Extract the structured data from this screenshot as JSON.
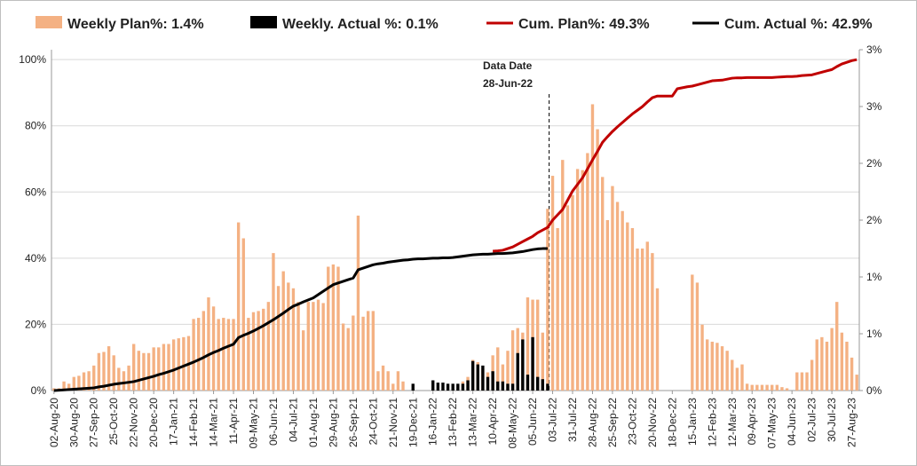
{
  "chart_data": {
    "type": "combo",
    "categories": [
      "02-Aug-20",
      null,
      null,
      null,
      "30-Aug-20",
      null,
      null,
      null,
      "27-Sep-20",
      null,
      null,
      null,
      "25-Oct-20",
      null,
      null,
      null,
      "22-Nov-20",
      null,
      null,
      null,
      "20-Dec-20",
      null,
      null,
      null,
      "17-Jan-21",
      null,
      null,
      null,
      "14-Feb-21",
      null,
      null,
      null,
      "14-Mar-21",
      null,
      null,
      null,
      "11-Apr-21",
      null,
      null,
      null,
      "09-May-21",
      null,
      null,
      null,
      "06-Jun-21",
      null,
      null,
      null,
      "04-Jul-21",
      null,
      null,
      null,
      "01-Aug-21",
      null,
      null,
      null,
      "29-Aug-21",
      null,
      null,
      null,
      "26-Sep-21",
      null,
      null,
      null,
      "24-Oct-21",
      null,
      null,
      null,
      "21-Nov-21",
      null,
      null,
      null,
      "19-Dec-21",
      null,
      null,
      null,
      "16-Jan-22",
      null,
      null,
      null,
      "13-Feb-22",
      null,
      null,
      null,
      "13-Mar-22",
      null,
      null,
      null,
      "10-Apr-22",
      null,
      null,
      null,
      "08-May-22",
      null,
      null,
      null,
      "05-Jun-22",
      null,
      null,
      null,
      "03-Jul-22",
      null,
      null,
      null,
      "31-Jul-22",
      null,
      null,
      null,
      "28-Aug-22",
      null,
      null,
      null,
      "25-Sep-22",
      null,
      null,
      null,
      "23-Oct-22",
      null,
      null,
      null,
      "20-Nov-22",
      null,
      null,
      null,
      "18-Dec-22",
      null,
      null,
      null,
      "15-Jan-23",
      null,
      null,
      null,
      "12-Feb-23",
      null,
      null,
      null,
      "12-Mar-23",
      null,
      null,
      null,
      "09-Apr-23",
      null,
      null,
      null,
      "07-May-23",
      null,
      null,
      null,
      "04-Jun-23",
      null,
      null,
      null,
      "02-Jul-23",
      null,
      null,
      null,
      "30-Jul-23",
      null,
      null,
      null,
      "27-Aug-23",
      null
    ],
    "series": [
      {
        "name": "Weekly Plan%:  1.4%",
        "type": "bar",
        "axis": "y2",
        "color": "#f4b183",
        "values": [
          0.02,
          0.02,
          0.08,
          0.06,
          0.12,
          0.13,
          0.16,
          0.17,
          0.22,
          0.33,
          0.34,
          0.39,
          0.31,
          0.2,
          0.17,
          0.22,
          0.41,
          0.35,
          0.33,
          0.33,
          0.38,
          0.38,
          0.41,
          0.41,
          0.45,
          0.46,
          0.47,
          0.48,
          0.63,
          0.64,
          0.7,
          0.82,
          0.74,
          0.63,
          0.64,
          0.63,
          0.63,
          1.48,
          1.34,
          0.64,
          0.69,
          0.7,
          0.72,
          0.78,
          1.21,
          0.92,
          1.05,
          0.95,
          0.9,
          0.78,
          0.53,
          0.78,
          0.78,
          0.8,
          0.77,
          1.09,
          1.11,
          1.09,
          0.59,
          0.55,
          0.66,
          1.54,
          0.65,
          0.7,
          0.7,
          0.17,
          0.22,
          0.17,
          0.06,
          0.17,
          0.08,
          null,
          null,
          null,
          null,
          null,
          null,
          null,
          null,
          null,
          null,
          null,
          0.08,
          0.12,
          0.27,
          0.25,
          0.2,
          0.16,
          0.31,
          0.38,
          0.23,
          0.35,
          0.53,
          0.55,
          0.51,
          0.82,
          0.8,
          0.8,
          0.51,
          1.6,
          1.89,
          1.43,
          2.03,
          1.63,
          1.72,
          1.95,
          1.94,
          2.09,
          2.52,
          2.3,
          1.88,
          1.5,
          1.8,
          1.66,
          1.58,
          1.48,
          1.43,
          1.25,
          1.25,
          1.31,
          1.21,
          0.9,
          null,
          null,
          null,
          null,
          null,
          null,
          1.02,
          0.95,
          0.58,
          0.45,
          0.43,
          0.42,
          0.39,
          0.35,
          0.27,
          0.2,
          0.23,
          0.06,
          0.05,
          0.05,
          0.05,
          0.05,
          0.05,
          0.05,
          0.03,
          0.02,
          null,
          0.16,
          0.16,
          0.16,
          0.27,
          0.45,
          0.47,
          0.43,
          0.55,
          0.78,
          0.51,
          0.43,
          0.29,
          0.14
        ]
      },
      {
        "name": "Weekly. Actual %:  0.1%",
        "type": "bar",
        "axis": "y2",
        "color": "#000000",
        "values": [
          null,
          null,
          null,
          null,
          null,
          null,
          null,
          null,
          null,
          null,
          null,
          null,
          null,
          null,
          null,
          null,
          null,
          null,
          null,
          null,
          null,
          null,
          null,
          null,
          null,
          null,
          null,
          null,
          null,
          null,
          null,
          null,
          null,
          null,
          null,
          null,
          null,
          null,
          null,
          null,
          null,
          null,
          null,
          null,
          null,
          null,
          null,
          null,
          null,
          null,
          null,
          null,
          null,
          null,
          null,
          null,
          null,
          null,
          null,
          null,
          null,
          null,
          null,
          null,
          null,
          null,
          null,
          null,
          null,
          null,
          null,
          null,
          0.06,
          null,
          null,
          null,
          0.09,
          0.07,
          0.07,
          0.06,
          0.06,
          0.06,
          0.06,
          0.09,
          0.26,
          0.23,
          0.22,
          0.12,
          0.17,
          0.08,
          0.08,
          0.06,
          0.06,
          0.33,
          0.45,
          0.14,
          0.47,
          0.12,
          0.1,
          0.06,
          null,
          null,
          null,
          null,
          null,
          null,
          null,
          null,
          null,
          null,
          null,
          null,
          null,
          null,
          null,
          null,
          null,
          null,
          null,
          null,
          null,
          null,
          null,
          null,
          null,
          null,
          null,
          null,
          null,
          null,
          null,
          null,
          null,
          null,
          null,
          null,
          null,
          null,
          null,
          null,
          null,
          null,
          null,
          null,
          null,
          null,
          null,
          null,
          null,
          null,
          null,
          null,
          null,
          null,
          null,
          null,
          null,
          null,
          null,
          null,
          null,
          null
        ]
      },
      {
        "name": "Cum. Plan%:  49.3%",
        "type": "line",
        "axis": "y",
        "color": "#c00000",
        "values": [
          null,
          null,
          null,
          null,
          null,
          null,
          null,
          null,
          null,
          null,
          null,
          null,
          null,
          null,
          null,
          null,
          null,
          null,
          null,
          null,
          null,
          null,
          null,
          null,
          null,
          null,
          null,
          null,
          null,
          null,
          null,
          null,
          null,
          null,
          null,
          null,
          null,
          null,
          null,
          null,
          null,
          null,
          null,
          null,
          null,
          null,
          null,
          null,
          null,
          null,
          null,
          null,
          null,
          null,
          null,
          null,
          null,
          null,
          null,
          null,
          null,
          null,
          null,
          null,
          null,
          null,
          null,
          null,
          null,
          null,
          null,
          null,
          null,
          null,
          null,
          null,
          null,
          null,
          null,
          null,
          null,
          null,
          null,
          null,
          null,
          null,
          null,
          null,
          42.1,
          42.2,
          42.4,
          42.9,
          43.4,
          44.2,
          45.0,
          45.8,
          46.6,
          47.7,
          48.5,
          49.3,
          51.5,
          53.1,
          54.7,
          57.5,
          60.3,
          62.3,
          64.3,
          67.0,
          69.7,
          72.3,
          75.0,
          76.7,
          78.3,
          79.7,
          81.0,
          82.3,
          83.6,
          84.7,
          85.8,
          87.2,
          88.5,
          89.0,
          89.0,
          89.0,
          89.0,
          91.2,
          91.5,
          91.8,
          92.0,
          92.4,
          92.8,
          93.2,
          93.6,
          93.7,
          93.8,
          94.1,
          94.4,
          94.5,
          94.5,
          94.6,
          94.6,
          94.6,
          94.6,
          94.6,
          94.6,
          94.7,
          94.8,
          94.9,
          94.9,
          95.0,
          95.2,
          95.3,
          95.4,
          95.8,
          96.2,
          96.6,
          97.0,
          97.9,
          98.7,
          99.2,
          99.7,
          100.0
        ]
      },
      {
        "name": "Cum. Actual %:  42.9%",
        "type": "line",
        "axis": "y",
        "color": "#000000",
        "values": [
          0,
          0.1,
          0.2,
          0.3,
          0.4,
          0.5,
          0.6,
          0.7,
          0.8,
          1.1,
          1.3,
          1.6,
          1.9,
          2.1,
          2.3,
          2.5,
          2.7,
          3.1,
          3.5,
          3.9,
          4.3,
          4.8,
          5.2,
          5.7,
          6.2,
          6.8,
          7.4,
          8.0,
          8.6,
          9.3,
          10.0,
          10.8,
          11.5,
          12.1,
          12.8,
          13.4,
          14.0,
          16.0,
          16.7,
          17.3,
          18.0,
          18.8,
          19.6,
          20.5,
          21.4,
          22.4,
          23.4,
          24.5,
          25.5,
          26.1,
          26.8,
          27.4,
          28.0,
          29.0,
          30.0,
          31.0,
          32.0,
          32.5,
          33.0,
          33.5,
          34.0,
          36.5,
          37.0,
          37.5,
          38.0,
          38.3,
          38.5,
          38.8,
          39.0,
          39.2,
          39.4,
          39.5,
          39.7,
          39.8,
          39.8,
          39.9,
          40.0,
          40.0,
          40.1,
          40.1,
          40.2,
          40.4,
          40.6,
          40.8,
          41.0,
          41.1,
          41.2,
          41.2,
          41.3,
          41.4,
          41.4,
          41.5,
          41.6,
          41.8,
          42.0,
          42.3,
          42.6,
          42.8,
          42.9,
          42.9,
          null,
          null,
          null,
          null,
          null,
          null,
          null,
          null,
          null,
          null,
          null,
          null,
          null,
          null,
          null,
          null,
          null,
          null,
          null,
          null,
          null,
          null,
          null,
          null,
          null,
          null,
          null,
          null,
          null,
          null,
          null,
          null,
          null,
          null,
          null,
          null,
          null,
          null,
          null,
          null,
          null,
          null,
          null,
          null,
          null,
          null,
          null,
          null,
          null,
          null,
          null,
          null,
          null,
          null,
          null,
          null,
          null,
          null,
          null,
          null,
          null,
          null
        ]
      }
    ],
    "ylim": [
      0,
      103
    ],
    "yticks": [
      {
        "value": 0,
        "label": "0%"
      },
      {
        "value": 20,
        "label": "20%"
      },
      {
        "value": 40,
        "label": "40%"
      },
      {
        "value": 60,
        "label": "60%"
      },
      {
        "value": 80,
        "label": "80%"
      },
      {
        "value": 100,
        "label": "100%"
      }
    ],
    "y2lim": [
      0,
      3
    ],
    "y2ticks": [
      {
        "value": 0,
        "label": "0%"
      },
      {
        "value": 0.5,
        "label": "1%"
      },
      {
        "value": 1.0,
        "label": "1%"
      },
      {
        "value": 1.5,
        "label": "2%"
      },
      {
        "value": 2.0,
        "label": "2%"
      },
      {
        "value": 2.5,
        "label": "3%"
      },
      {
        "value": 3.0,
        "label": "3%"
      }
    ],
    "grid": true,
    "annotation": [
      "Data Date",
      "28-Jun-22"
    ]
  }
}
